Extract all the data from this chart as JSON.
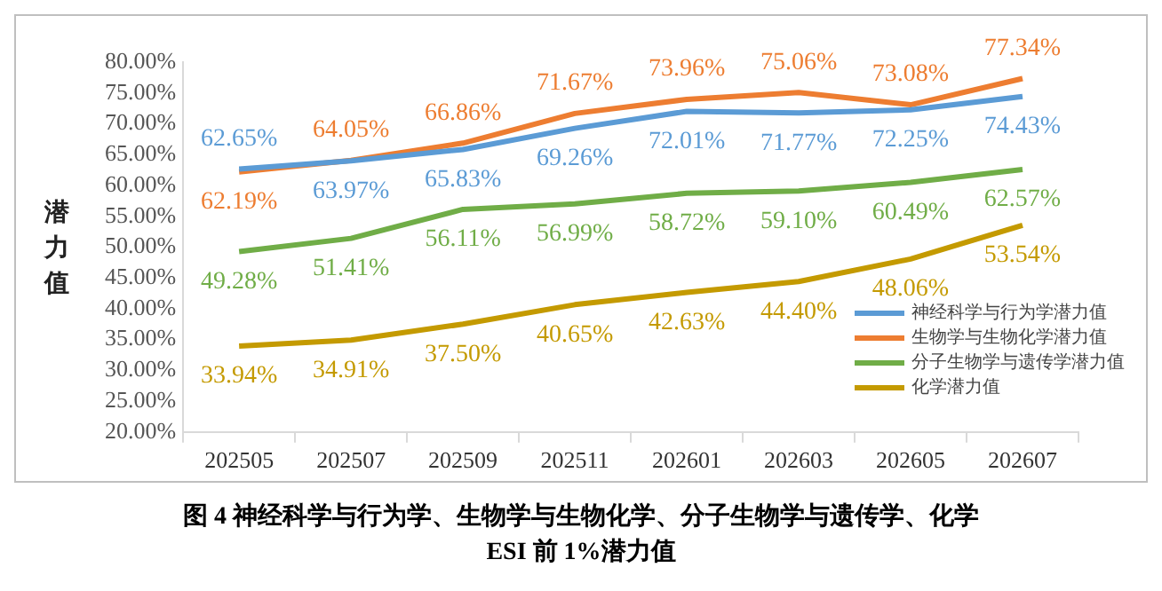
{
  "chart_data": {
    "type": "line",
    "title": "图 4  神经科学与行为学、生物学与生物化学、分子生物学与遗传学、化学\nESI 前 1%潜力值",
    "ylabel": "潜力值",
    "categories": [
      "202505",
      "202507",
      "202509",
      "202511",
      "202601",
      "202603",
      "202605",
      "202607"
    ],
    "ylim": [
      20,
      80
    ],
    "yticks": [
      {
        "value": 20,
        "label": "20.00%"
      },
      {
        "value": 25,
        "label": "25.00%"
      },
      {
        "value": 30,
        "label": "30.00%"
      },
      {
        "value": 35,
        "label": "35.00%"
      },
      {
        "value": 40,
        "label": "40.00%"
      },
      {
        "value": 45,
        "label": "45.00%"
      },
      {
        "value": 50,
        "label": "50.00%"
      },
      {
        "value": 55,
        "label": "55.00%"
      },
      {
        "value": 60,
        "label": "60.00%"
      },
      {
        "value": 65,
        "label": "65.00%"
      },
      {
        "value": 70,
        "label": "70.00%"
      },
      {
        "value": 75,
        "label": "75.00%"
      },
      {
        "value": 80,
        "label": "80.00%"
      }
    ],
    "grid": false,
    "legend": "bottom right",
    "marker": "none",
    "line_style": "solid",
    "series": [
      {
        "name": "神经科学与行为学潜力值",
        "color": "#5b9bd5",
        "values": [
          62.65,
          63.97,
          65.83,
          69.26,
          72.01,
          71.77,
          72.25,
          74.43
        ],
        "value_labels": [
          "62.65%",
          "63.97%",
          "65.83%",
          "69.26%",
          "72.01%",
          "71.77%",
          "72.25%",
          "74.43%"
        ]
      },
      {
        "name": "生物学与生物化学潜力值",
        "color": "#ed7d31",
        "values": [
          62.19,
          64.05,
          66.86,
          71.67,
          73.96,
          75.06,
          73.08,
          77.34
        ],
        "value_labels": [
          "62.19%",
          "64.05%",
          "66.86%",
          "71.67%",
          "73.96%",
          "75.06%",
          "73.08%",
          "77.34%"
        ]
      },
      {
        "name": "分子生物学与遗传学潜力值",
        "color": "#70ad47",
        "values": [
          49.28,
          51.41,
          56.11,
          56.99,
          58.72,
          59.1,
          60.49,
          62.57
        ],
        "value_labels": [
          "49.28%",
          "51.41%",
          "56.11%",
          "56.99%",
          "58.72%",
          "59.10%",
          "60.49%",
          "62.57%"
        ]
      },
      {
        "name": "化学潜力值",
        "color": "#c49a00",
        "values": [
          33.94,
          34.91,
          37.5,
          40.65,
          42.63,
          44.4,
          48.06,
          53.54
        ],
        "value_labels": [
          "33.94%",
          "34.91%",
          "37.50%",
          "40.65%",
          "42.63%",
          "44.40%",
          "48.06%",
          "53.54%"
        ]
      }
    ]
  }
}
